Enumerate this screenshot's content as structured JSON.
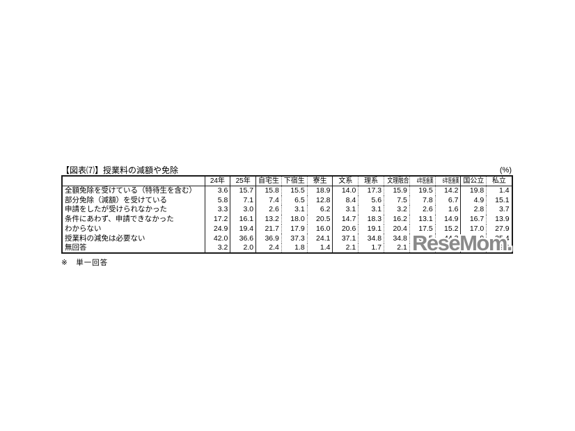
{
  "colors": {
    "background": "#ffffff",
    "border": "#1a1a1a",
    "text": "#000000",
    "watermark_gray": "#808080"
  },
  "watermark": {
    "text": "ReseMom."
  },
  "chart_data": {
    "type": "table",
    "title": "【図表⑺】授業料の減額や免除",
    "unit": "(%)",
    "footnote": "※　単一回答",
    "row_header": "",
    "columns": [
      "24年",
      "25年",
      "自宅生",
      "下宿生",
      "寮生",
      "文系",
      "理系",
      "文理融合",
      "4年医歯薬",
      "6年医歯薬",
      "国公立",
      "私立"
    ],
    "rows": [
      {
        "label": "全額免除を受けている（特待生を含む）",
        "values": [
          "3.6",
          "15.7",
          "15.8",
          "15.5",
          "18.9",
          "14.0",
          "17.3",
          "15.9",
          "19.5",
          "14.2",
          "19.8",
          "1.4"
        ]
      },
      {
        "label": "部分免除（減額）を受けている",
        "values": [
          "5.8",
          "7.1",
          "7.4",
          "6.5",
          "12.8",
          "8.4",
          "5.6",
          "7.5",
          "7.8",
          "6.7",
          "4.9",
          "15.1"
        ]
      },
      {
        "label": "申請をしたが受けられなかった",
        "values": [
          "3.3",
          "3.0",
          "2.6",
          "3.1",
          "6.2",
          "3.1",
          "3.1",
          "3.2",
          "2.6",
          "1.6",
          "2.8",
          "3.7"
        ]
      },
      {
        "label": "条件にあわず、申請できなかった",
        "values": [
          "17.2",
          "16.1",
          "13.2",
          "18.0",
          "20.5",
          "14.7",
          "18.3",
          "16.2",
          "13.1",
          "14.9",
          "16.7",
          "13.9"
        ]
      },
      {
        "label": "わからない",
        "values": [
          "24.9",
          "19.4",
          "21.7",
          "17.9",
          "16.0",
          "20.6",
          "19.1",
          "20.4",
          "17.5",
          "15.2",
          "17.0",
          "27.9"
        ]
      },
      {
        "label": "授業料の減免は必要ない",
        "values": [
          "42.0",
          "36.6",
          "36.9",
          "37.3",
          "24.1",
          "37.1",
          "34.8",
          "34.8",
          "37.5",
          "44.3",
          "36.9",
          "35.4"
        ]
      },
      {
        "label": "無回答",
        "values": [
          "3.2",
          "2.0",
          "2.4",
          "1.8",
          "1.4",
          "2.1",
          "1.7",
          "2.1",
          "2.0",
          "",
          "",
          "2.6"
        ]
      }
    ]
  }
}
